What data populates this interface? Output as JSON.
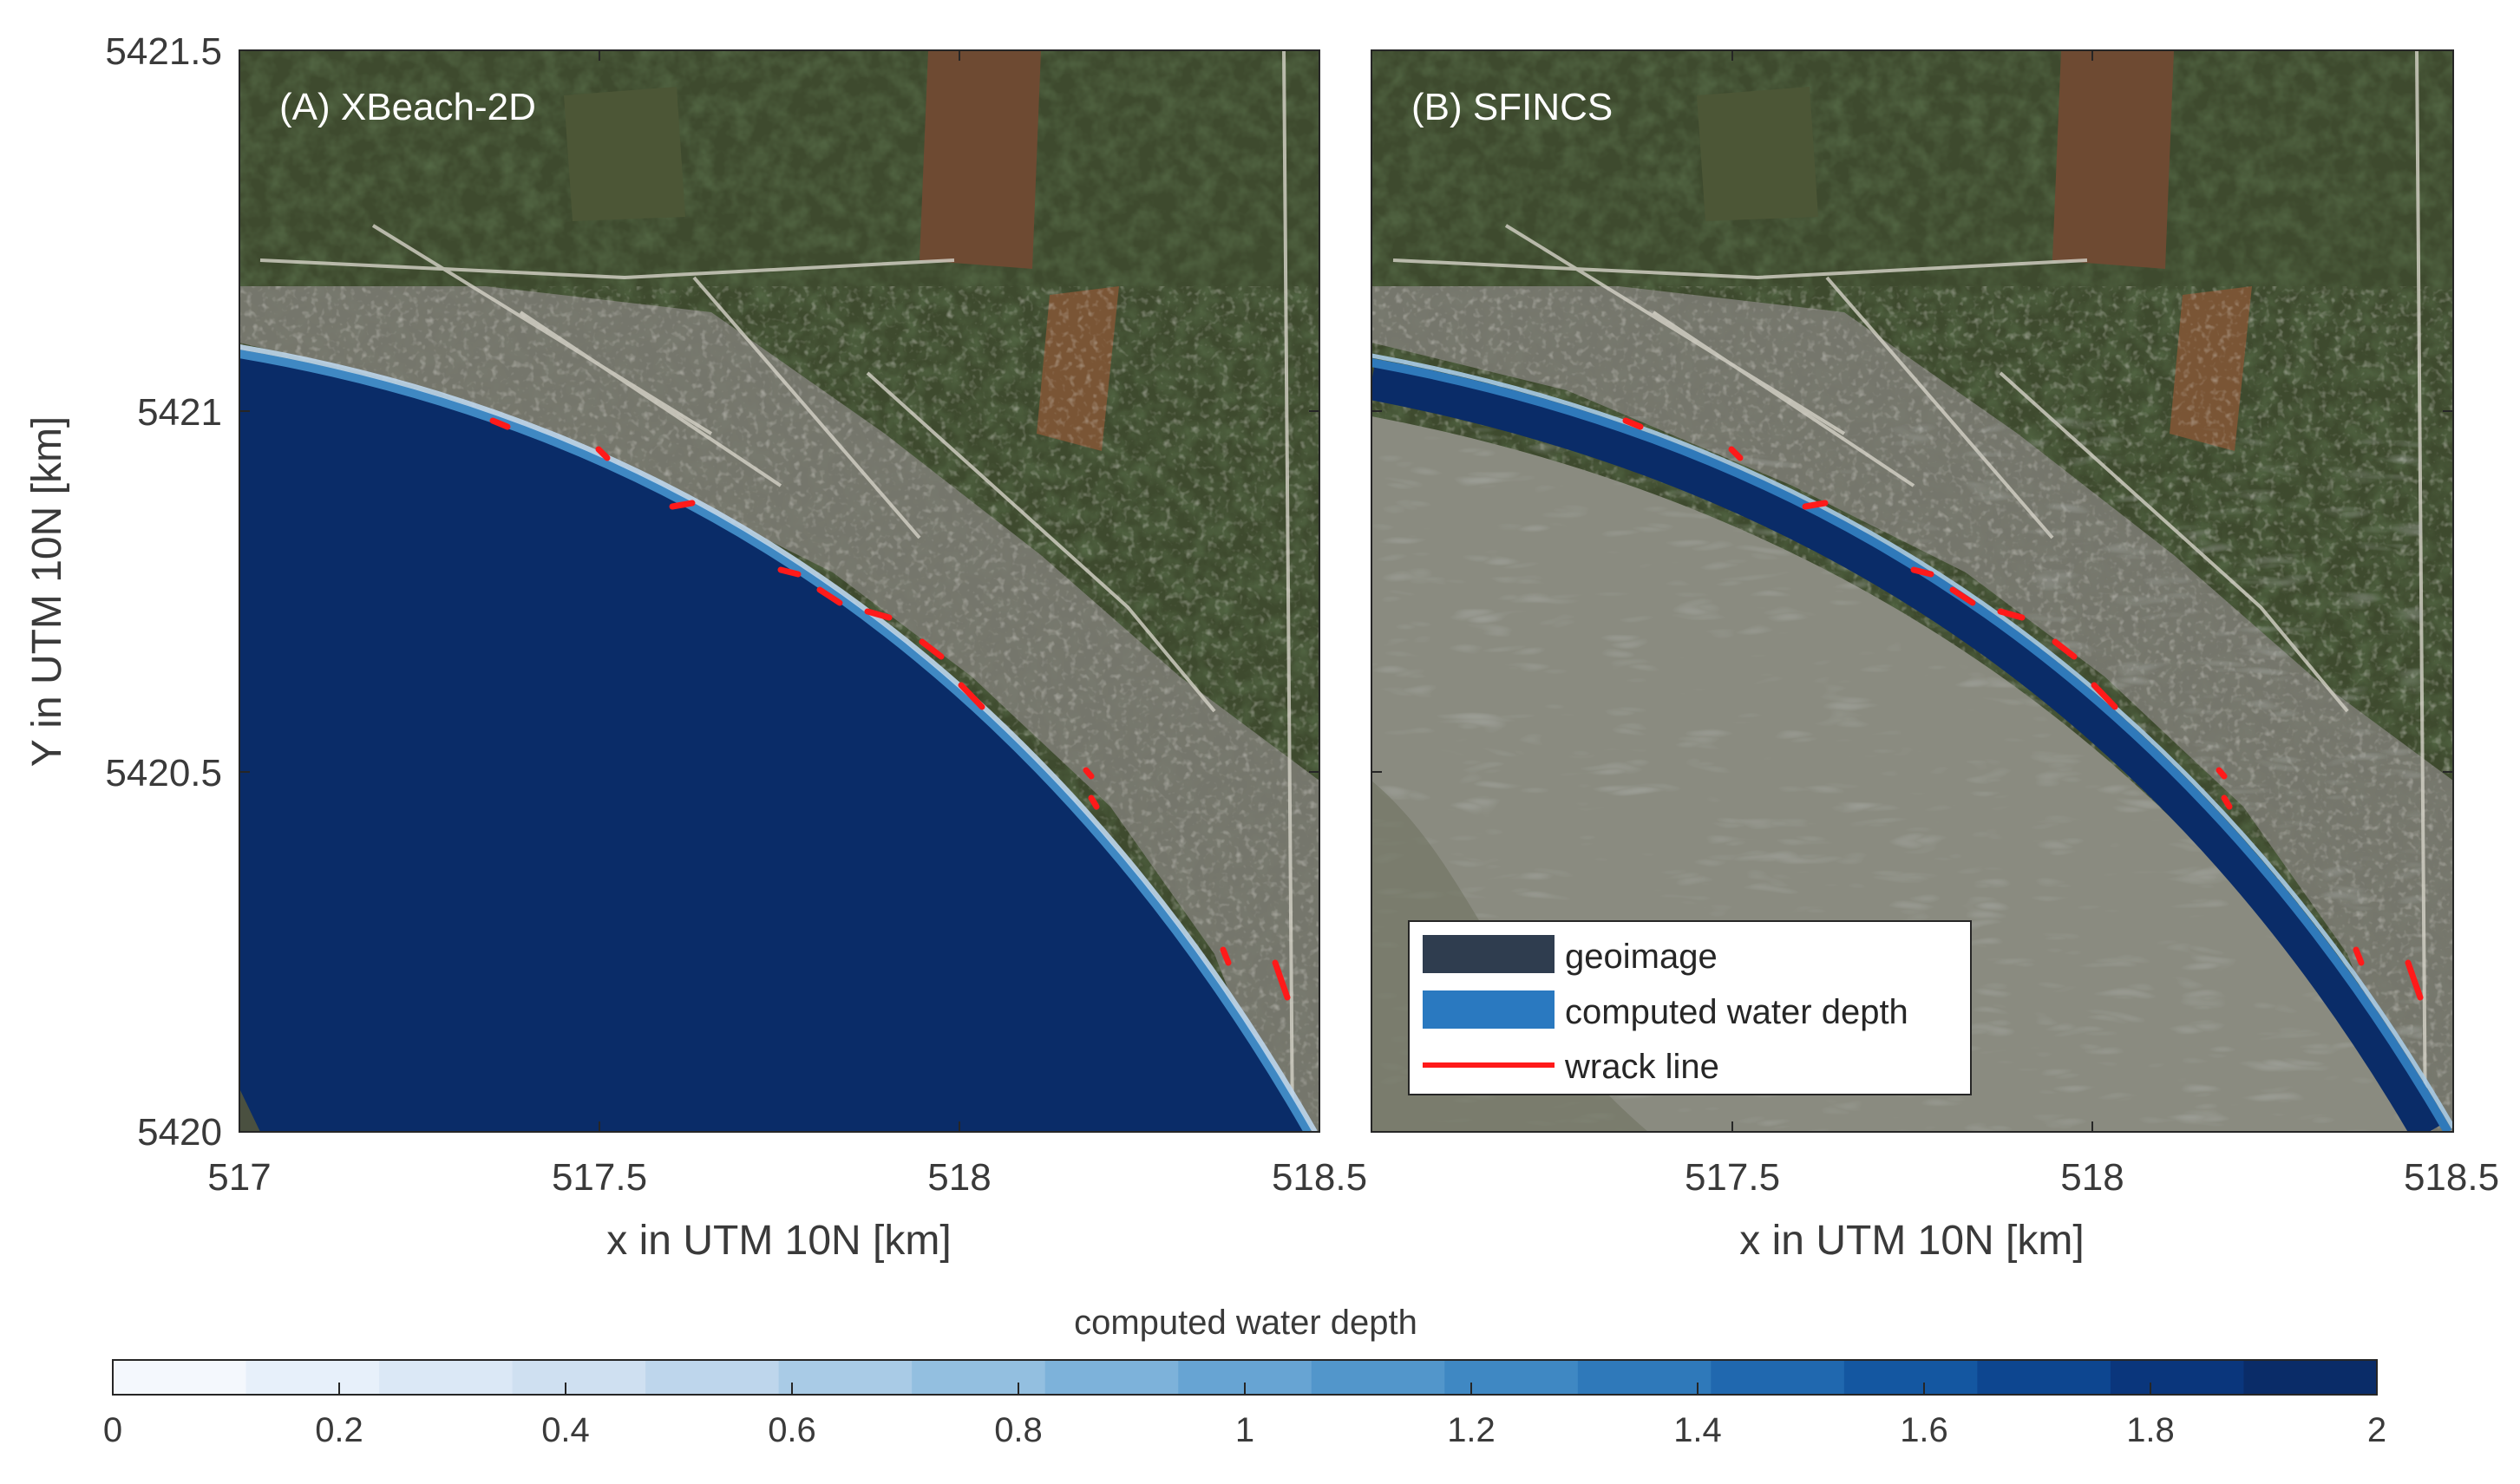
{
  "panels": [
    {
      "label": "(A) XBeach-2D"
    },
    {
      "label": "(B) SFINCS"
    }
  ],
  "axes": {
    "xlabel": "x in UTM 10N [km]",
    "ylabel": "Y in UTM 10N [km]",
    "xlim": [
      517,
      518.5
    ],
    "ylim": [
      5420,
      5421.5
    ],
    "x_ticks": [
      "517",
      "517.5",
      "518",
      "518.5"
    ],
    "y_ticks": [
      "5420",
      "5420.5",
      "5421",
      "5421.5"
    ]
  },
  "legend": {
    "items": [
      {
        "label": "geoimage",
        "color": "#2f3d4f"
      },
      {
        "label": "computed water depth",
        "color": "#2a79c0"
      },
      {
        "label": "wrack line",
        "color": "#ff1a1a"
      }
    ]
  },
  "colorbar": {
    "title": "computed water depth",
    "range": [
      0,
      2
    ],
    "ticks": [
      "0",
      "0.2",
      "0.4",
      "0.6",
      "0.8",
      "1",
      "1.2",
      "1.4",
      "1.6",
      "1.8",
      "2"
    ],
    "colors": [
      "#f4f8fd",
      "#e7f0fa",
      "#dbe8f6",
      "#cfe0f1",
      "#bed6ec",
      "#a9cbe6",
      "#93bfe0",
      "#7db2da",
      "#67a4d3",
      "#5296cb",
      "#3f88c3",
      "#2f79ba",
      "#2068af",
      "#1457a1",
      "#0d4690",
      "#0a367c",
      "#0a2c68"
    ]
  }
}
